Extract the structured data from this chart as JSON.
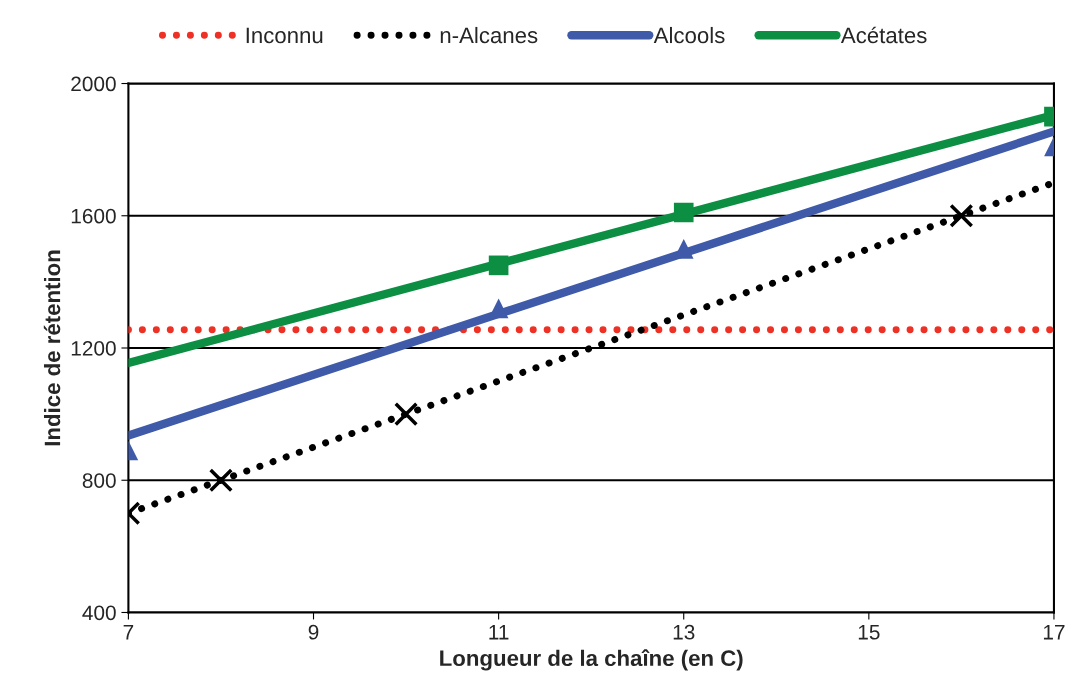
{
  "chart_data": {
    "type": "line",
    "xlabel": "Longueur de la chaîne (en C)",
    "ylabel": "Indice de rétention",
    "xlim": [
      7,
      17
    ],
    "xticks": [
      7,
      9,
      11,
      13,
      15,
      17
    ],
    "ylim": [
      400,
      2000
    ],
    "yticks": [
      400,
      800,
      1200,
      1600,
      2000
    ],
    "grid": "y",
    "legend": "top",
    "series": [
      {
        "name": "Inconnu",
        "color": "#ee3124",
        "line_style": "dotted",
        "x": [
          7,
          17
        ],
        "values": [
          1255,
          1255
        ]
      },
      {
        "name": "n-Alcanes",
        "color": "#000000",
        "line_style": "dotted",
        "x": [
          7,
          17
        ],
        "values": [
          700,
          1700
        ]
      },
      {
        "name": "Alcools",
        "color": "#3f5aa8",
        "line_style": "solid",
        "x": [
          7,
          17
        ],
        "values": [
          935,
          1855
        ]
      },
      {
        "name": "Acétates",
        "color": "#0c8f43",
        "line_style": "solid",
        "x": [
          7,
          17
        ],
        "values": [
          1155,
          1905
        ]
      },
      {
        "type": "scatter",
        "color": "#000000",
        "marker": "cross",
        "x": [
          7,
          8,
          10,
          16
        ],
        "values": [
          700,
          800,
          1000,
          1600
        ]
      },
      {
        "type": "scatter",
        "color": "#3f5aa8",
        "marker": "triangle",
        "x": [
          7,
          11,
          13,
          17
        ],
        "values": [
          890,
          1320,
          1500,
          1810
        ]
      },
      {
        "type": "scatter",
        "color": "#0c8f43",
        "marker": "square",
        "x": [
          11,
          13,
          17
        ],
        "values": [
          1450,
          1610,
          1900
        ]
      }
    ]
  }
}
